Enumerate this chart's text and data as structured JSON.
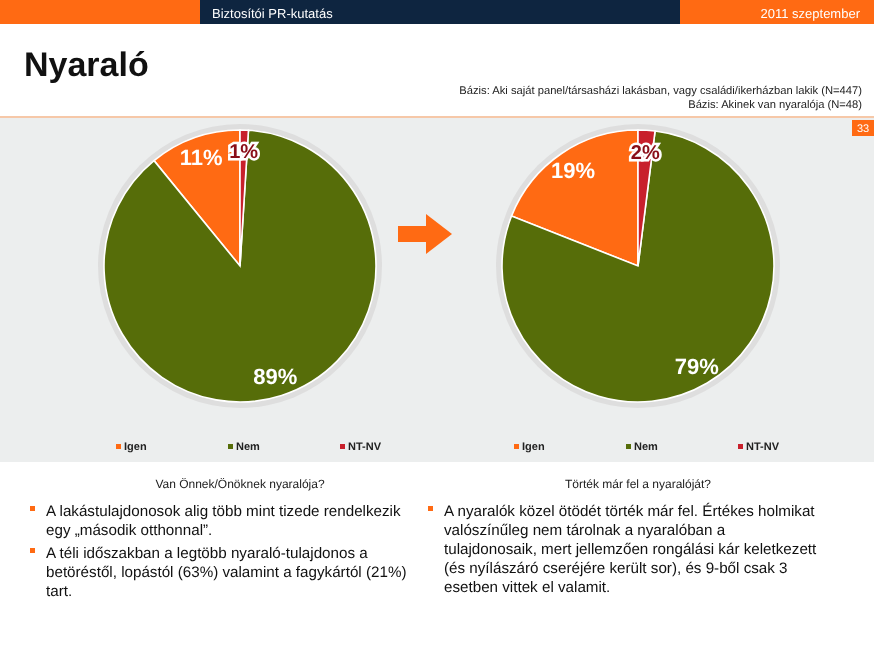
{
  "chart_data": [
    {
      "type": "other",
      "title": "Nyaraló",
      "annotations": [
        "Biztosítói PR-kutatás",
        "2011 szeptember",
        "33",
        "Bázis: Aki saját panel/társasházi lakásban, vagy családi/ikerházban lakik (N=447)",
        "Bázis: Akinek van nyaralója (N=48)"
      ]
    },
    {
      "type": "pie",
      "xlabel": "Van Önnek/Önöknek nyaralója?",
      "categories": [
        "Igen",
        "Nem",
        "NT-NV"
      ],
      "values": [
        11,
        89,
        1
      ],
      "value_labels": [
        "11%",
        "89%",
        "1%"
      ],
      "colors": [
        "#ff6a13",
        "#566d09",
        "#c8202c"
      ],
      "legend": "bottom",
      "annotations": [
        "A lakástulajdonosok alig több mint tizede rendelkezik egy „második otthonnal”.",
        "A téli időszakban a legtöbb nyaraló-tulajdonos a betöréstől, lopástól (63%) valamint a fagykártól (21%) tart."
      ]
    },
    {
      "type": "pie",
      "xlabel": "Törték már fel a nyaralóját?",
      "categories": [
        "Igen",
        "Nem",
        "NT-NV"
      ],
      "values": [
        19,
        79,
        2
      ],
      "value_labels": [
        "19%",
        "79%",
        "2%"
      ],
      "colors": [
        "#ff6a13",
        "#566d09",
        "#c8202c"
      ],
      "legend": "bottom",
      "annotations": [
        "A nyaralók közel ötödét törték már fel. Értékes holmikat valószínűleg nem tárolnak a nyaralóban a tulajdonosaik, mert jellemzően rongálási kár keletkezett (és nyílászáró cseréjére került sor), és 9-ből csak 3 esetben vittek el valamit."
      ]
    }
  ]
}
